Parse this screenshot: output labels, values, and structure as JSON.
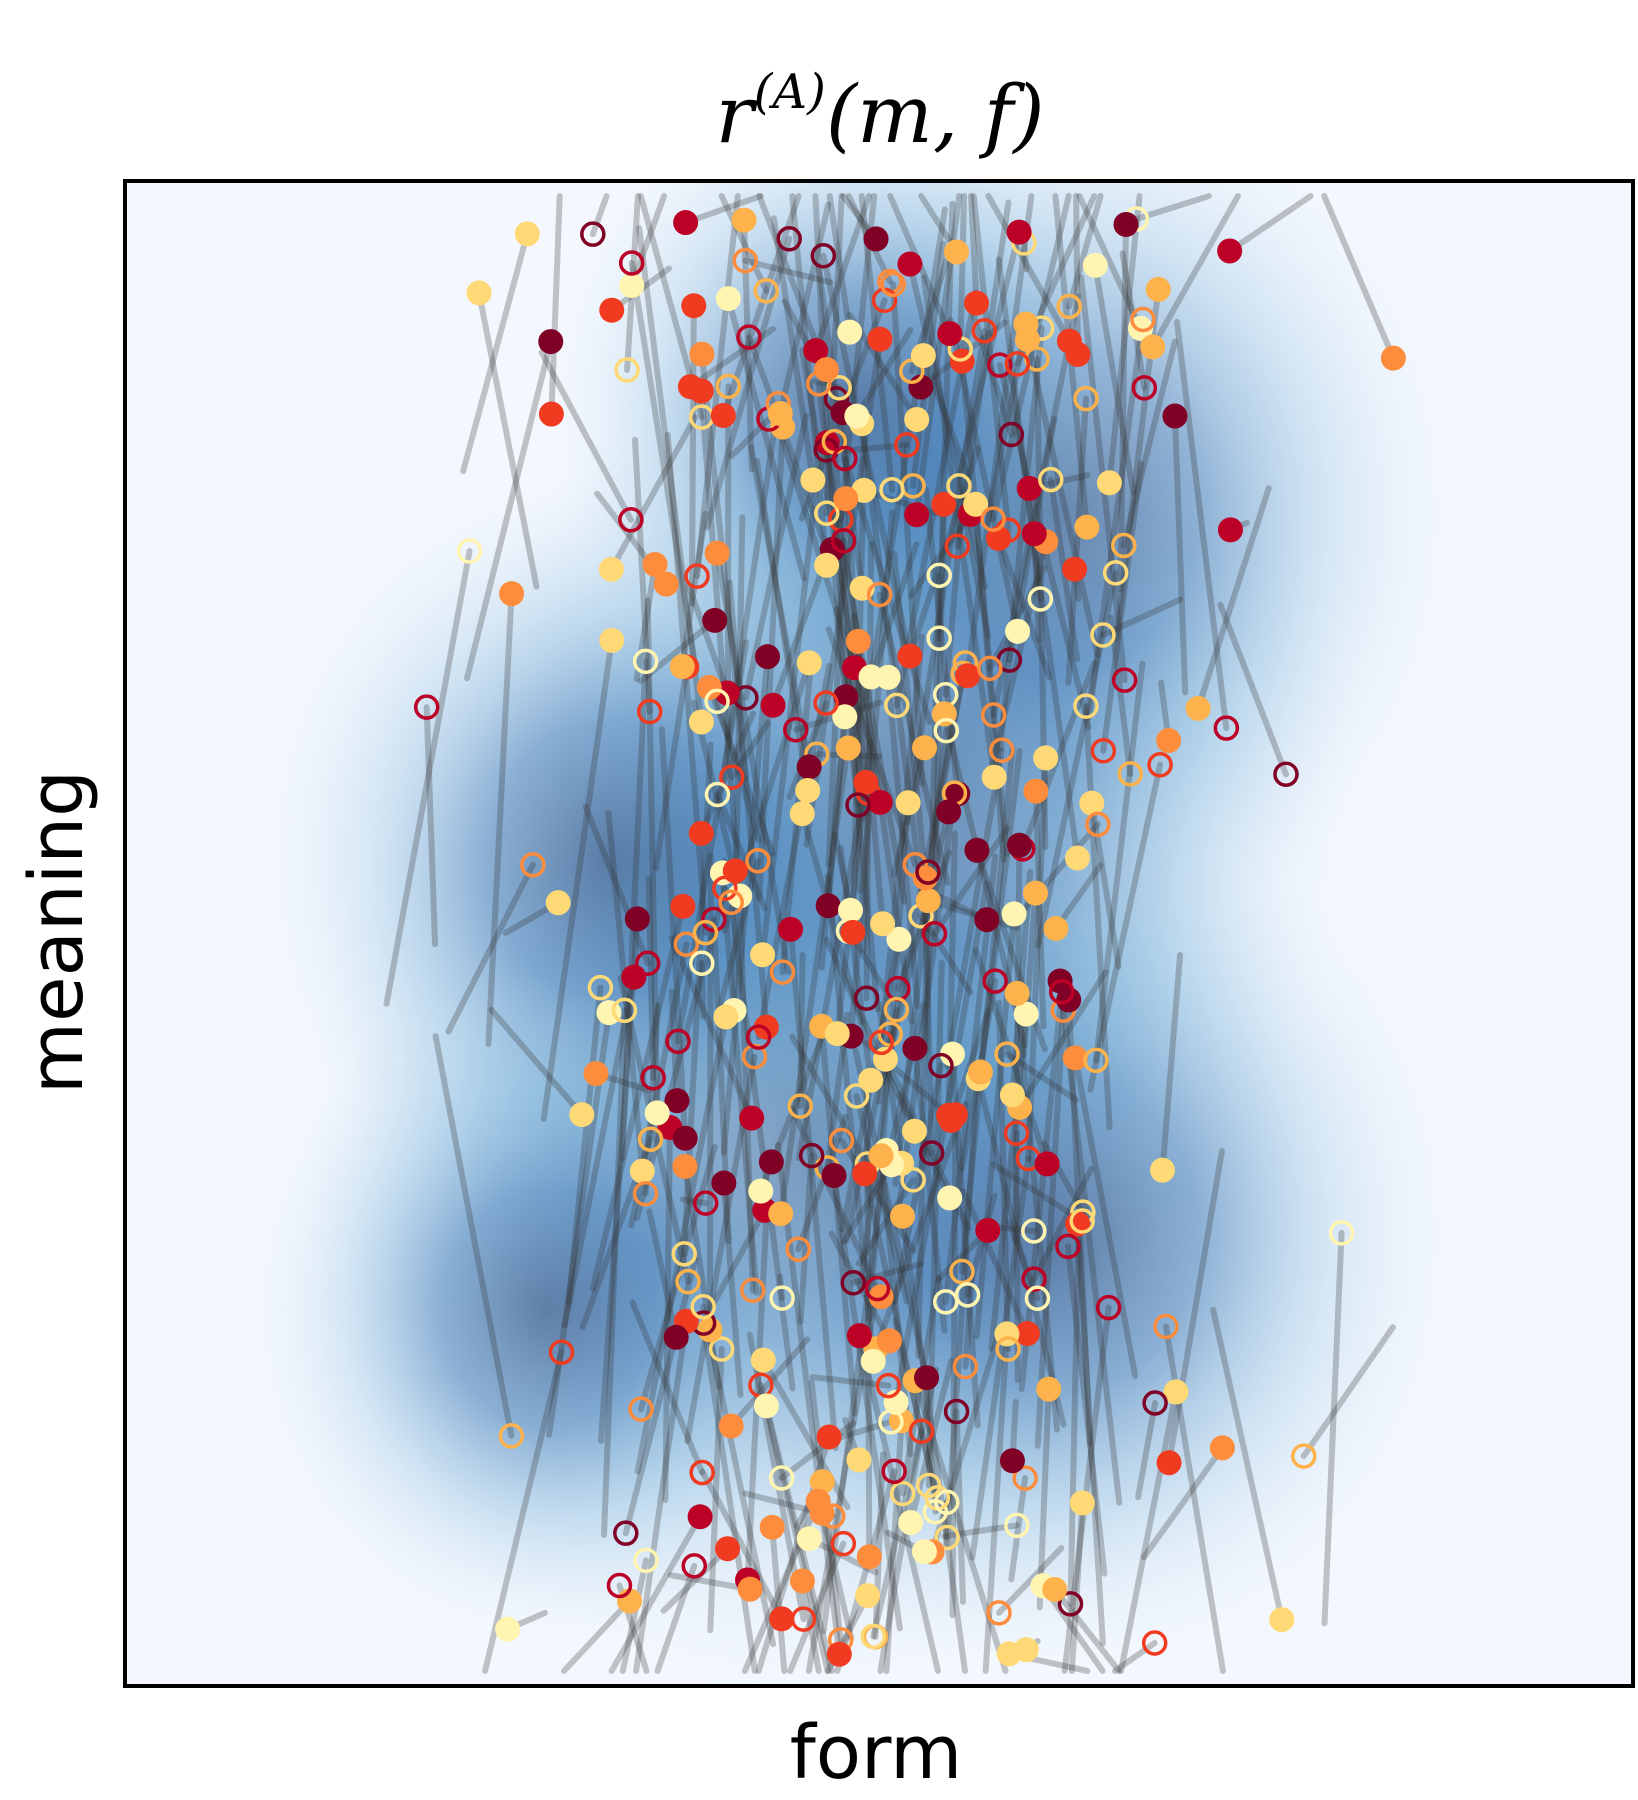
{
  "chart_data": {
    "type": "scatter",
    "title": "r(A)(m, f)",
    "title_parts": {
      "base": "r",
      "superscript": "(A)",
      "args": "(m, f)"
    },
    "xlabel": "form",
    "ylabel": "meaning",
    "xlim": [
      0,
      1
    ],
    "ylim": [
      0,
      1
    ],
    "grid": false,
    "ticks": false,
    "legend": "none",
    "background_density": {
      "colormap": "Blues",
      "peaks": [
        {
          "m": 0.45,
          "f": 0.36,
          "weight": 1.0
        },
        {
          "m": 0.62,
          "f": 0.3,
          "weight": 0.8
        },
        {
          "m": 0.52,
          "f": 0.6,
          "weight": 0.9
        },
        {
          "m": 0.62,
          "f": 0.78,
          "weight": 0.8
        },
        {
          "m": 0.32,
          "f": 0.55,
          "weight": 0.7
        },
        {
          "m": 0.28,
          "f": 0.25,
          "weight": 0.6
        },
        {
          "m": 0.48,
          "f": 0.85,
          "weight": 0.6
        }
      ]
    },
    "point_colors": [
      "#fff5b1",
      "#fed976",
      "#feb24c",
      "#fd8d3c",
      "#f03b20",
      "#bd0026",
      "#800026"
    ],
    "line_color": "#333333",
    "markers": {
      "filled": "filled circle",
      "hollow": "open circle"
    },
    "n_points": 420,
    "seed": 73
  }
}
